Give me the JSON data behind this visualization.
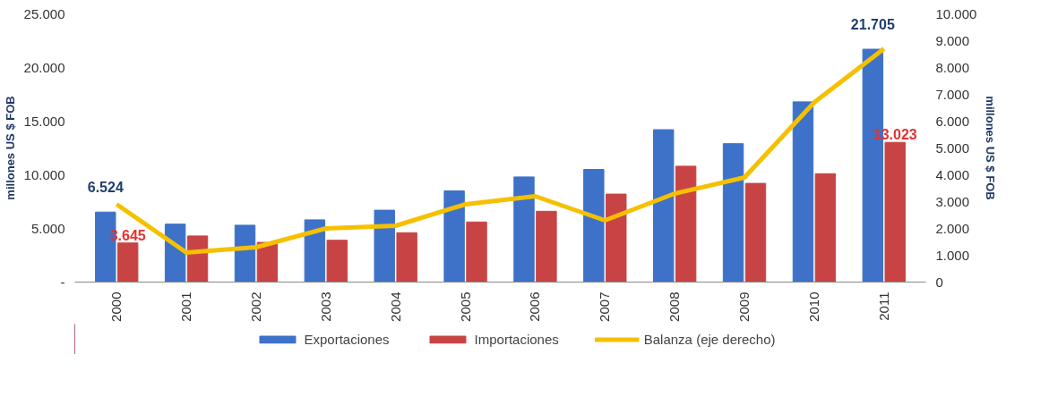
{
  "chart_data": {
    "type": "bar",
    "ylabel": "millones US $ FOB",
    "y2label": "millones US $ FOB",
    "categories": [
      "2000",
      "2001",
      "2002",
      "2003",
      "2004",
      "2005",
      "2006",
      "2007",
      "2008",
      "2009",
      "2010",
      "2011"
    ],
    "series": [
      {
        "name": "Exportaciones",
        "color": "#3d72c8",
        "values": [
          6524,
          5400,
          5300,
          5800,
          6700,
          8500,
          9800,
          10500,
          14200,
          12900,
          16800,
          21705
        ],
        "value_labels": [
          "6.524",
          null,
          null,
          null,
          null,
          null,
          null,
          null,
          null,
          null,
          null,
          "21.705"
        ]
      },
      {
        "name": "Importaciones",
        "color": "#c84444",
        "values": [
          3645,
          4300,
          3700,
          3900,
          4600,
          5600,
          6600,
          8200,
          10800,
          9200,
          10100,
          13023
        ],
        "value_labels": [
          "3.645",
          null,
          null,
          null,
          null,
          null,
          null,
          null,
          null,
          null,
          null,
          "13.023"
        ]
      },
      {
        "name": "Balanza (eje derecho)",
        "type": "line",
        "axis": "y2",
        "color": "#f5c000",
        "values": [
          2900,
          1100,
          1300,
          2000,
          2100,
          2900,
          3200,
          2300,
          3300,
          3900,
          6700,
          8700
        ]
      }
    ],
    "ylim": [
      0,
      25000
    ],
    "yticks": [
      {
        "value": 0,
        "label": "-"
      },
      {
        "value": 5000,
        "label": "5.000"
      },
      {
        "value": 10000,
        "label": "10.000"
      },
      {
        "value": 15000,
        "label": "15.000"
      },
      {
        "value": 20000,
        "label": "20.000"
      },
      {
        "value": 25000,
        "label": "25.000"
      }
    ],
    "y2lim": [
      0,
      10000
    ],
    "y2ticks": [
      0,
      {
        "value": 1000,
        "label": "1.000"
      },
      {
        "value": 2000,
        "label": "2.000"
      },
      {
        "value": 3000,
        "label": "3.000"
      },
      {
        "value": 4000,
        "label": "4.000"
      },
      {
        "value": 5000,
        "label": "5.000"
      },
      {
        "value": 6000,
        "label": "6.000"
      },
      {
        "value": 7000,
        "label": "7.000"
      },
      {
        "value": 8000,
        "label": "8.000"
      },
      {
        "value": 9000,
        "label": "9.000"
      },
      {
        "value": 10000,
        "label": "10.000"
      }
    ],
    "grid": false,
    "legend": "bottom"
  }
}
